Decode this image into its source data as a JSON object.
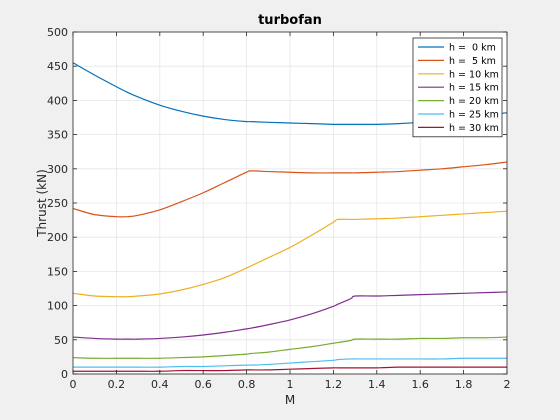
{
  "chart_data": {
    "type": "line",
    "title": "turbofan",
    "xlabel": "M",
    "ylabel": "Thrust (kN)",
    "xlim": [
      0,
      2
    ],
    "ylim": [
      0,
      500
    ],
    "xticks": [
      0,
      0.2,
      0.4,
      0.6,
      0.8,
      1,
      1.2,
      1.4,
      1.6,
      1.8,
      2
    ],
    "xtick_labels": [
      "0",
      "0.2",
      "0.4",
      "0.6",
      "0.8",
      "1",
      "1.2",
      "1.4",
      "1.6",
      "1.8",
      "2"
    ],
    "yticks": [
      0,
      50,
      100,
      150,
      200,
      250,
      300,
      350,
      400,
      450,
      500
    ],
    "ytick_labels": [
      "0",
      "50",
      "100",
      "150",
      "200",
      "250",
      "300",
      "350",
      "400",
      "450",
      "500"
    ],
    "grid": true,
    "legend_position": "top-right",
    "x": [
      0,
      0.1,
      0.2,
      0.25,
      0.3,
      0.4,
      0.5,
      0.6,
      0.7,
      0.8,
      0.82,
      0.9,
      1.0,
      1.1,
      1.2,
      1.22,
      1.28,
      1.3,
      1.4,
      1.5,
      1.6,
      1.7,
      1.8,
      1.9,
      2.0
    ],
    "series": [
      {
        "name": "h =  0 km",
        "color": "#0072bd",
        "values": [
          455,
          437,
          420,
          412,
          405,
          393,
          384,
          377,
          372,
          369,
          369,
          368,
          367,
          366,
          365,
          365,
          365,
          365,
          365,
          366,
          368,
          371,
          374,
          378,
          382
        ]
      },
      {
        "name": "h =  5 km",
        "color": "#d95319",
        "values": [
          242,
          233,
          230,
          230,
          232,
          240,
          252,
          265,
          280,
          295,
          297,
          296,
          295,
          294,
          294,
          294,
          294,
          294,
          295,
          296,
          298,
          300,
          303,
          306,
          310
        ]
      },
      {
        "name": "h = 10 km",
        "color": "#edb120",
        "values": [
          118,
          114,
          113,
          113,
          114,
          117,
          123,
          131,
          141,
          155,
          158,
          170,
          185,
          203,
          222,
          226,
          226,
          226,
          227,
          228,
          230,
          232,
          234,
          236,
          238
        ]
      },
      {
        "name": "h = 15 km",
        "color": "#7e2f8e",
        "values": [
          54,
          52,
          51,
          51,
          51,
          52,
          54,
          57,
          61,
          66,
          67,
          72,
          79,
          88,
          99,
          102,
          110,
          114,
          114,
          115,
          116,
          117,
          118,
          119,
          120
        ]
      },
      {
        "name": "h = 20 km",
        "color": "#77ac30",
        "values": [
          24,
          23,
          23,
          23,
          23,
          23,
          24,
          25,
          27,
          29,
          30,
          32,
          36,
          40,
          45,
          46,
          49,
          51,
          51,
          51,
          52,
          52,
          53,
          53,
          54
        ]
      },
      {
        "name": "h = 25 km",
        "color": "#4dbeee",
        "values": [
          10,
          10,
          10,
          10,
          10,
          10,
          11,
          11,
          12,
          13,
          13,
          14,
          16,
          18,
          20,
          21,
          22,
          22,
          22,
          22,
          22,
          22,
          23,
          23,
          23
        ]
      },
      {
        "name": "h = 30 km",
        "color": "#a2142f",
        "values": [
          4,
          4,
          4,
          4,
          4,
          4,
          5,
          5,
          5,
          6,
          6,
          6,
          7,
          8,
          9,
          9,
          9,
          9,
          9,
          10,
          10,
          10,
          10,
          10,
          10
        ]
      }
    ]
  }
}
